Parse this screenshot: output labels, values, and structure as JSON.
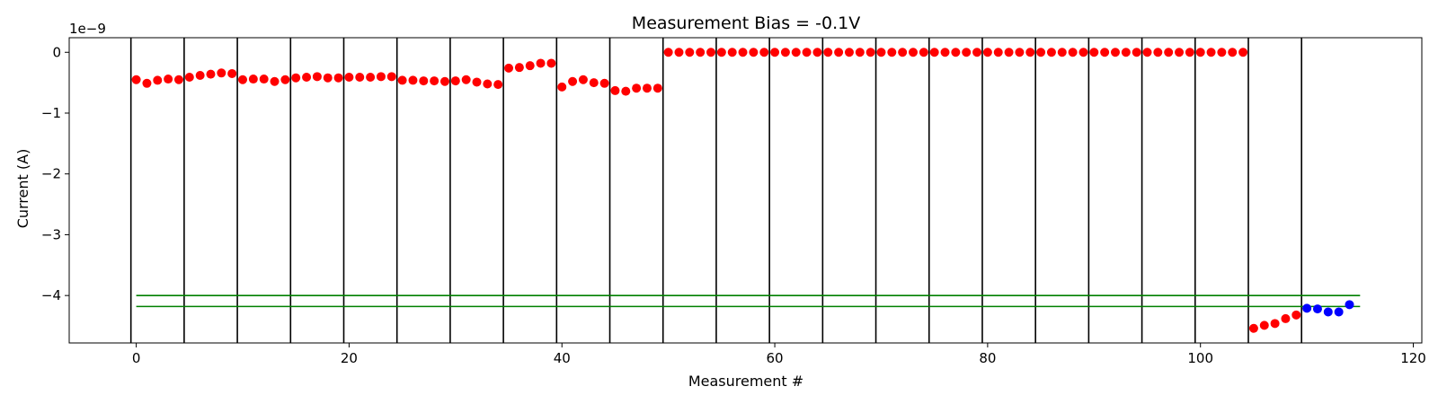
{
  "chart_data": {
    "type": "scatter",
    "title": "Measurement Bias = -0.1V",
    "xlabel": "Measurement #",
    "ylabel": "Current (A)",
    "y_offset_text": "1e−9",
    "y_scale": 1e-09,
    "xlim": [
      -6.3,
      120.8
    ],
    "ylim": [
      -4.78e-09,
      2.4e-10
    ],
    "x_ticks": [
      0,
      20,
      40,
      60,
      80,
      100,
      120
    ],
    "x_tick_labels": [
      "0",
      "20",
      "40",
      "60",
      "80",
      "100",
      "120"
    ],
    "y_ticks": [
      0,
      -1e-09,
      -2e-09,
      -3e-09,
      -4e-09
    ],
    "y_tick_labels": [
      "0",
      "−1",
      "−2",
      "−3",
      "−4"
    ],
    "grid": false,
    "vertical_lines": {
      "color": "#000000",
      "x": [
        -0.5,
        4.5,
        9.5,
        14.5,
        19.5,
        24.5,
        29.5,
        34.5,
        39.5,
        44.5,
        49.5,
        54.5,
        59.5,
        64.5,
        69.5,
        74.5,
        79.5,
        84.5,
        89.5,
        94.5,
        99.5,
        104.5,
        109.5
      ]
    },
    "horizontal_lines": {
      "color": "#008000",
      "x_range": [
        0,
        115
      ],
      "y": [
        -4e-09,
        -4.18e-09
      ]
    },
    "series": [
      {
        "color": "#ff0000",
        "x": [
          0,
          1,
          2,
          3,
          4,
          5,
          6,
          7,
          8,
          9,
          10,
          11,
          12,
          13,
          14,
          15,
          16,
          17,
          18,
          19,
          20,
          21,
          22,
          23,
          24,
          25,
          26,
          27,
          28,
          29,
          30,
          31,
          32,
          33,
          34,
          35,
          36,
          37,
          38,
          39,
          40,
          41,
          42,
          43,
          44,
          45,
          46,
          47,
          48,
          49,
          50,
          51,
          52,
          53,
          54,
          55,
          56,
          57,
          58,
          59,
          60,
          61,
          62,
          63,
          64,
          65,
          66,
          67,
          68,
          69,
          70,
          71,
          72,
          73,
          74,
          75,
          76,
          77,
          78,
          79,
          80,
          81,
          82,
          83,
          84,
          85,
          86,
          87,
          88,
          89,
          90,
          91,
          92,
          93,
          94,
          95,
          96,
          97,
          98,
          99,
          100,
          101,
          102,
          103,
          104,
          105,
          106,
          107,
          108,
          109
        ],
        "y": [
          -4.5e-10,
          -5.1e-10,
          -4.6e-10,
          -4.4e-10,
          -4.5e-10,
          -4.1e-10,
          -3.8e-10,
          -3.6e-10,
          -3.4e-10,
          -3.5e-10,
          -4.5e-10,
          -4.4e-10,
          -4.4e-10,
          -4.8e-10,
          -4.5e-10,
          -4.2e-10,
          -4.1e-10,
          -4e-10,
          -4.2e-10,
          -4.2e-10,
          -4.1e-10,
          -4.1e-10,
          -4.1e-10,
          -4e-10,
          -4e-10,
          -4.6e-10,
          -4.6e-10,
          -4.7e-10,
          -4.7e-10,
          -4.8e-10,
          -4.7e-10,
          -4.5e-10,
          -4.9e-10,
          -5.2e-10,
          -5.3e-10,
          -2.6e-10,
          -2.5e-10,
          -2.2e-10,
          -1.8e-10,
          -1.8e-10,
          -5.7e-10,
          -4.8e-10,
          -4.5e-10,
          -5e-10,
          -5.1e-10,
          -6.3e-10,
          -6.4e-10,
          -5.9e-10,
          -5.9e-10,
          -5.9e-10,
          0,
          0,
          0,
          0,
          0,
          0,
          0,
          0,
          0,
          0,
          0,
          0,
          0,
          0,
          0,
          0,
          0,
          0,
          0,
          0,
          0,
          0,
          0,
          0,
          0,
          0,
          0,
          0,
          0,
          0,
          0,
          0,
          0,
          0,
          0,
          0,
          0,
          0,
          0,
          0,
          0,
          0,
          0,
          0,
          0,
          0,
          0,
          0,
          0,
          0,
          0,
          0,
          0,
          0,
          0,
          -4.54e-09,
          -4.49e-09,
          -4.46e-09,
          -4.38e-09,
          -4.32e-09
        ]
      },
      {
        "color": "#0000ff",
        "x": [
          110,
          111,
          112,
          113,
          114
        ],
        "y": [
          -4.21e-09,
          -4.22e-09,
          -4.27e-09,
          -4.27e-09,
          -4.15e-09
        ]
      }
    ]
  }
}
